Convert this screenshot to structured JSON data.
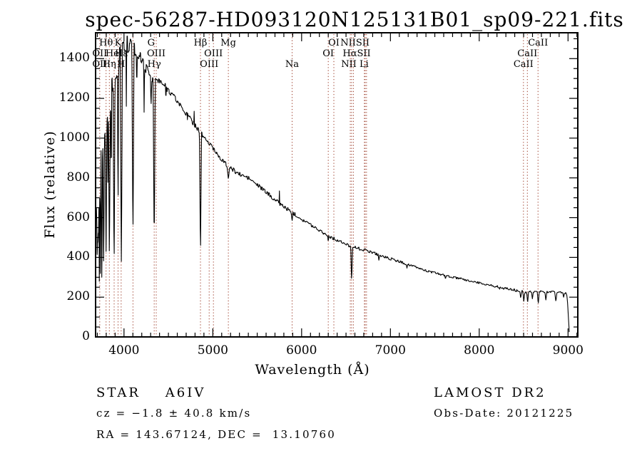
{
  "title": "spec-56287-HD093120N125131B01_sp09-221.fits",
  "footer": {
    "classification": "STAR    A6IV",
    "cz": "cz = −1.8 ± 40.8 km/s",
    "radec": "RA = 143.67124, DEC =  13.10760",
    "survey": "LAMOST DR2",
    "obs_date": "Obs-Date: 20121225"
  },
  "colors": {
    "marker_line": "#9c3b28",
    "spectrum": "#000000",
    "frame": "#000000"
  },
  "chart_data": {
    "type": "line",
    "title": "spec-56287-HD093120N125131B01_sp09-221.fits",
    "xlabel": "Wavelength (Å)",
    "ylabel": "Flux (relative)",
    "xlim": [
      3680,
      9110
    ],
    "ylim": [
      0,
      1530
    ],
    "xticks": [
      4000,
      5000,
      6000,
      7000,
      8000,
      9000
    ],
    "yticks": [
      0,
      200,
      400,
      600,
      800,
      1000,
      1200,
      1400
    ],
    "x_minor_step": 100,
    "y_minor_step": 50,
    "grid": false,
    "marker_wavelengths": [
      3727,
      3798,
      3835,
      3889,
      3933,
      3968,
      4101,
      4340,
      4363,
      4861,
      4959,
      5007,
      5175,
      5893,
      6300,
      6363,
      6548,
      6563,
      6583,
      6707,
      6716,
      6731,
      8498,
      8542,
      8662
    ],
    "line_labels": [
      {
        "row": 1,
        "text": "Hθ",
        "wl": 3798
      },
      {
        "row": 1,
        "text": "K",
        "wl": 3933
      },
      {
        "row": 1,
        "text": "G",
        "wl": 4305
      },
      {
        "row": 1,
        "text": "Hβ",
        "wl": 4861
      },
      {
        "row": 1,
        "text": "Mg",
        "wl": 5175
      },
      {
        "row": 1,
        "text": "OI",
        "wl": 6363
      },
      {
        "row": 1,
        "text": "NIISII",
        "wl": 6601
      },
      {
        "row": 1,
        "text": "CaII",
        "wl": 8662
      },
      {
        "row": 2,
        "text": "OII",
        "wl": 3727
      },
      {
        "row": 2,
        "text": "HeI",
        "wl": 3889
      },
      {
        "row": 2,
        "text": "Hε",
        "wl": 3970
      },
      {
        "row": 2,
        "text": "OIII",
        "wl": 4363
      },
      {
        "row": 2,
        "text": "OIII",
        "wl": 5007
      },
      {
        "row": 2,
        "text": "OI",
        "wl": 6300
      },
      {
        "row": 2,
        "text": "HαSII",
        "wl": 6620
      },
      {
        "row": 2,
        "text": "CaII",
        "wl": 8542
      },
      {
        "row": 3,
        "text": "OII",
        "wl": 3727
      },
      {
        "row": 3,
        "text": "Hη",
        "wl": 3835
      },
      {
        "row": 3,
        "text": "H",
        "wl": 3968
      },
      {
        "row": 3,
        "text": "Hγ",
        "wl": 4340
      },
      {
        "row": 3,
        "text": "OIII",
        "wl": 4959
      },
      {
        "row": 3,
        "text": "Na",
        "wl": 5893
      },
      {
        "row": 3,
        "text": "NII Li",
        "wl": 6600
      },
      {
        "row": 3,
        "text": "CaII",
        "wl": 8498
      }
    ],
    "wl_start": 3690,
    "wl_end": 9015,
    "sample_step": 4,
    "continuum_anchors": [
      [
        3690,
        620
      ],
      [
        3705,
        700
      ],
      [
        3720,
        790
      ],
      [
        3740,
        900
      ],
      [
        3760,
        1000
      ],
      [
        3780,
        1060
      ],
      [
        3805,
        1120
      ],
      [
        3835,
        1200
      ],
      [
        3865,
        1270
      ],
      [
        3900,
        1330
      ],
      [
        3935,
        1390
      ],
      [
        3970,
        1430
      ],
      [
        4010,
        1465
      ],
      [
        4060,
        1470
      ],
      [
        4120,
        1445
      ],
      [
        4190,
        1400
      ],
      [
        4250,
        1350
      ],
      [
        4310,
        1305
      ],
      [
        4370,
        1290
      ],
      [
        4440,
        1270
      ],
      [
        4520,
        1235
      ],
      [
        4600,
        1185
      ],
      [
        4700,
        1125
      ],
      [
        4800,
        1065
      ],
      [
        4860,
        1030
      ],
      [
        4900,
        1005
      ],
      [
        5000,
        950
      ],
      [
        5100,
        893
      ],
      [
        5175,
        852
      ],
      [
        5250,
        835
      ],
      [
        5300,
        818
      ],
      [
        5400,
        800
      ],
      [
        5500,
        765
      ],
      [
        5600,
        728
      ],
      [
        5700,
        690
      ],
      [
        5800,
        655
      ],
      [
        5900,
        625
      ],
      [
        6000,
        593
      ],
      [
        6100,
        565
      ],
      [
        6200,
        538
      ],
      [
        6300,
        508
      ],
      [
        6400,
        487
      ],
      [
        6500,
        465
      ],
      [
        6600,
        450
      ],
      [
        6700,
        438
      ],
      [
        6800,
        426
      ],
      [
        6900,
        407
      ],
      [
        7000,
        393
      ],
      [
        7100,
        379
      ],
      [
        7200,
        364
      ],
      [
        7300,
        349
      ],
      [
        7400,
        333
      ],
      [
        7500,
        322
      ],
      [
        7600,
        311
      ],
      [
        7700,
        300
      ],
      [
        7800,
        291
      ],
      [
        7900,
        281
      ],
      [
        8000,
        272
      ],
      [
        8100,
        262
      ],
      [
        8200,
        253
      ],
      [
        8300,
        243
      ],
      [
        8400,
        235
      ],
      [
        8450,
        230
      ],
      [
        8500,
        227
      ],
      [
        8550,
        227
      ],
      [
        8600,
        229
      ],
      [
        8650,
        229
      ],
      [
        8700,
        227
      ],
      [
        8750,
        225
      ],
      [
        8800,
        229
      ],
      [
        8850,
        227
      ],
      [
        8900,
        225
      ],
      [
        8950,
        221
      ],
      [
        8985,
        217
      ],
      [
        8995,
        170
      ],
      [
        9005,
        90
      ],
      [
        9015,
        20
      ]
    ],
    "absorption_lines": [
      [
        3697,
        350,
        4
      ],
      [
        3704,
        300,
        5
      ],
      [
        3712,
        360,
        5
      ],
      [
        3722,
        280,
        6
      ],
      [
        3734,
        320,
        7
      ],
      [
        3750,
        300,
        8
      ],
      [
        3771,
        330,
        9
      ],
      [
        3798,
        430,
        10
      ],
      [
        3819,
        720,
        5
      ],
      [
        3835,
        380,
        10
      ],
      [
        3856,
        780,
        5
      ],
      [
        3889,
        360,
        11
      ],
      [
        3933,
        640,
        7
      ],
      [
        3970,
        380,
        12
      ],
      [
        4026,
        1160,
        5
      ],
      [
        4101,
        520,
        12
      ],
      [
        4144,
        1230,
        4
      ],
      [
        4226,
        1130,
        5
      ],
      [
        4305,
        1160,
        7
      ],
      [
        4340,
        480,
        12
      ],
      [
        4472,
        1180,
        4
      ],
      [
        4713,
        1080,
        3
      ],
      [
        4861,
        430,
        12
      ],
      [
        5175,
        795,
        12
      ],
      [
        5893,
        583,
        9
      ],
      [
        6300,
        478,
        6
      ],
      [
        6563,
        285,
        10
      ],
      [
        6870,
        386,
        8
      ],
      [
        7186,
        346,
        7
      ],
      [
        7620,
        292,
        9
      ],
      [
        8230,
        240,
        5
      ],
      [
        8467,
        196,
        9
      ],
      [
        8502,
        180,
        10
      ],
      [
        8545,
        175,
        10
      ],
      [
        8598,
        192,
        10
      ],
      [
        8665,
        168,
        11
      ],
      [
        8750,
        186,
        11
      ],
      [
        8863,
        180,
        12
      ],
      [
        8950,
        200,
        8
      ]
    ],
    "emission_spikes": [
      [
        4790,
        1135,
        3
      ],
      [
        5751,
        770,
        3
      ]
    ],
    "noise_profile": [
      [
        3690,
        150
      ],
      [
        3800,
        140
      ],
      [
        3900,
        90
      ],
      [
        3980,
        60
      ],
      [
        4060,
        45
      ],
      [
        4150,
        30
      ],
      [
        4300,
        20
      ],
      [
        4600,
        15
      ],
      [
        5000,
        12
      ],
      [
        5500,
        10
      ],
      [
        6000,
        8
      ],
      [
        6500,
        7
      ],
      [
        7000,
        6
      ],
      [
        7500,
        5
      ],
      [
        8200,
        5
      ],
      [
        8500,
        6
      ],
      [
        8990,
        4
      ],
      [
        9015,
        3
      ]
    ]
  }
}
